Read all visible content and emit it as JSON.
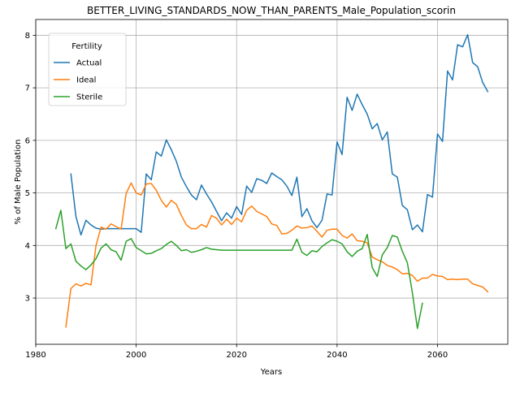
{
  "chart_data": {
    "type": "line",
    "title": "BETTER_LIVING_STANDARDS_NOW_THAN_PARENTS_Male_Population_scorin",
    "xlabel": "Years",
    "ylabel": "% of Male Population",
    "xlim": [
      1980,
      2074
    ],
    "ylim": [
      2.12,
      8.3
    ],
    "xticks": [
      1980,
      2000,
      2020,
      2040,
      2060
    ],
    "yticks": [
      3,
      4,
      5,
      6,
      7,
      8
    ],
    "grid": true,
    "legend": {
      "title": "Fertility",
      "position": "top-left"
    },
    "series": [
      {
        "name": "Actual",
        "color": "#1f77b4",
        "points": [
          [
            1987,
            5.36
          ],
          [
            1988,
            4.55
          ],
          [
            1989,
            4.2
          ],
          [
            1990,
            4.48
          ],
          [
            1991,
            4.39
          ],
          [
            1992,
            4.33
          ],
          [
            1993,
            4.31
          ],
          [
            1994,
            4.32
          ],
          [
            1995,
            4.32
          ],
          [
            1996,
            4.32
          ],
          [
            1997,
            4.32
          ],
          [
            1998,
            4.32
          ],
          [
            1999,
            4.32
          ],
          [
            2000,
            4.32
          ],
          [
            2001,
            4.25
          ],
          [
            2002,
            5.36
          ],
          [
            2003,
            5.25
          ],
          [
            2004,
            5.78
          ],
          [
            2005,
            5.7
          ],
          [
            2006,
            6.01
          ],
          [
            2007,
            5.82
          ],
          [
            2008,
            5.6
          ],
          [
            2009,
            5.3
          ],
          [
            2010,
            5.12
          ],
          [
            2011,
            4.96
          ],
          [
            2012,
            4.87
          ],
          [
            2013,
            5.15
          ],
          [
            2014,
            4.98
          ],
          [
            2015,
            4.83
          ],
          [
            2016,
            4.65
          ],
          [
            2017,
            4.47
          ],
          [
            2018,
            4.62
          ],
          [
            2019,
            4.52
          ],
          [
            2020,
            4.74
          ],
          [
            2021,
            4.59
          ],
          [
            2022,
            5.13
          ],
          [
            2023,
            5.01
          ],
          [
            2024,
            5.27
          ],
          [
            2025,
            5.24
          ],
          [
            2026,
            5.18
          ],
          [
            2027,
            5.38
          ],
          [
            2028,
            5.31
          ],
          [
            2029,
            5.25
          ],
          [
            2030,
            5.13
          ],
          [
            2031,
            4.95
          ],
          [
            2032,
            5.3
          ],
          [
            2033,
            4.55
          ],
          [
            2034,
            4.7
          ],
          [
            2035,
            4.47
          ],
          [
            2036,
            4.34
          ],
          [
            2037,
            4.48
          ],
          [
            2038,
            4.98
          ],
          [
            2039,
            4.96
          ],
          [
            2040,
            5.97
          ],
          [
            2041,
            5.73
          ],
          [
            2042,
            6.82
          ],
          [
            2043,
            6.57
          ],
          [
            2044,
            6.88
          ],
          [
            2045,
            6.68
          ],
          [
            2046,
            6.5
          ],
          [
            2047,
            6.22
          ],
          [
            2048,
            6.32
          ],
          [
            2049,
            6.01
          ],
          [
            2050,
            6.16
          ],
          [
            2051,
            5.36
          ],
          [
            2052,
            5.3
          ],
          [
            2053,
            4.76
          ],
          [
            2054,
            4.68
          ],
          [
            2055,
            4.3
          ],
          [
            2056,
            4.39
          ],
          [
            2057,
            4.26
          ],
          [
            2058,
            4.97
          ],
          [
            2059,
            4.92
          ],
          [
            2060,
            6.12
          ],
          [
            2061,
            5.98
          ],
          [
            2062,
            7.32
          ],
          [
            2063,
            7.15
          ],
          [
            2064,
            7.82
          ],
          [
            2065,
            7.78
          ],
          [
            2066,
            8.01
          ],
          [
            2067,
            7.48
          ],
          [
            2068,
            7.4
          ],
          [
            2069,
            7.1
          ],
          [
            2070,
            6.93
          ]
        ]
      },
      {
        "name": "Ideal",
        "color": "#ff7f0e",
        "points": [
          [
            1986,
            2.45
          ],
          [
            1987,
            3.18
          ],
          [
            1988,
            3.27
          ],
          [
            1989,
            3.23
          ],
          [
            1990,
            3.28
          ],
          [
            1991,
            3.25
          ],
          [
            1992,
            4.0
          ],
          [
            1993,
            4.35
          ],
          [
            1994,
            4.31
          ],
          [
            1995,
            4.41
          ],
          [
            1996,
            4.36
          ],
          [
            1997,
            4.31
          ],
          [
            1998,
            4.99
          ],
          [
            1999,
            5.19
          ],
          [
            2000,
            5.0
          ],
          [
            2001,
            4.96
          ],
          [
            2002,
            5.17
          ],
          [
            2003,
            5.18
          ],
          [
            2004,
            5.05
          ],
          [
            2005,
            4.86
          ],
          [
            2006,
            4.73
          ],
          [
            2007,
            4.86
          ],
          [
            2008,
            4.78
          ],
          [
            2009,
            4.57
          ],
          [
            2010,
            4.39
          ],
          [
            2011,
            4.32
          ],
          [
            2012,
            4.32
          ],
          [
            2013,
            4.4
          ],
          [
            2014,
            4.35
          ],
          [
            2015,
            4.57
          ],
          [
            2016,
            4.52
          ],
          [
            2017,
            4.39
          ],
          [
            2018,
            4.5
          ],
          [
            2019,
            4.4
          ],
          [
            2020,
            4.52
          ],
          [
            2021,
            4.45
          ],
          [
            2022,
            4.67
          ],
          [
            2023,
            4.75
          ],
          [
            2024,
            4.65
          ],
          [
            2025,
            4.6
          ],
          [
            2026,
            4.55
          ],
          [
            2027,
            4.41
          ],
          [
            2028,
            4.38
          ],
          [
            2029,
            4.22
          ],
          [
            2030,
            4.23
          ],
          [
            2031,
            4.29
          ],
          [
            2032,
            4.37
          ],
          [
            2033,
            4.33
          ],
          [
            2034,
            4.34
          ],
          [
            2035,
            4.37
          ],
          [
            2036,
            4.27
          ],
          [
            2037,
            4.16
          ],
          [
            2038,
            4.29
          ],
          [
            2039,
            4.31
          ],
          [
            2040,
            4.31
          ],
          [
            2041,
            4.19
          ],
          [
            2042,
            4.14
          ],
          [
            2043,
            4.22
          ],
          [
            2044,
            4.09
          ],
          [
            2045,
            4.08
          ],
          [
            2046,
            4.05
          ],
          [
            2047,
            3.78
          ],
          [
            2048,
            3.73
          ],
          [
            2049,
            3.69
          ],
          [
            2050,
            3.62
          ],
          [
            2051,
            3.59
          ],
          [
            2052,
            3.54
          ],
          [
            2053,
            3.46
          ],
          [
            2054,
            3.47
          ],
          [
            2055,
            3.43
          ],
          [
            2056,
            3.32
          ],
          [
            2057,
            3.38
          ],
          [
            2058,
            3.38
          ],
          [
            2059,
            3.45
          ],
          [
            2060,
            3.42
          ],
          [
            2061,
            3.41
          ],
          [
            2062,
            3.35
          ],
          [
            2063,
            3.36
          ],
          [
            2064,
            3.35
          ],
          [
            2065,
            3.36
          ],
          [
            2066,
            3.36
          ],
          [
            2067,
            3.27
          ],
          [
            2068,
            3.24
          ],
          [
            2069,
            3.21
          ],
          [
            2070,
            3.12
          ]
        ]
      },
      {
        "name": "Sterile",
        "color": "#2ca02c",
        "points": [
          [
            1984,
            4.32
          ],
          [
            1985,
            4.67
          ],
          [
            1986,
            3.94
          ],
          [
            1987,
            4.03
          ],
          [
            1988,
            3.7
          ],
          [
            1989,
            3.61
          ],
          [
            1990,
            3.54
          ],
          [
            1991,
            3.63
          ],
          [
            1992,
            3.75
          ],
          [
            1993,
            3.95
          ],
          [
            1994,
            4.03
          ],
          [
            1995,
            3.92
          ],
          [
            1996,
            3.88
          ],
          [
            1997,
            3.72
          ],
          [
            1998,
            4.08
          ],
          [
            1999,
            4.13
          ],
          [
            2000,
            3.96
          ],
          [
            2001,
            3.9
          ],
          [
            2002,
            3.84
          ],
          [
            2003,
            3.85
          ],
          [
            2004,
            3.9
          ],
          [
            2005,
            3.94
          ],
          [
            2006,
            4.02
          ],
          [
            2007,
            4.08
          ],
          [
            2008,
            4.0
          ],
          [
            2009,
            3.9
          ],
          [
            2010,
            3.92
          ],
          [
            2011,
            3.87
          ],
          [
            2012,
            3.89
          ],
          [
            2013,
            3.92
          ],
          [
            2014,
            3.96
          ],
          [
            2015,
            3.93
          ],
          [
            2016,
            3.92
          ],
          [
            2017,
            3.91
          ],
          [
            2018,
            3.91
          ],
          [
            2019,
            3.91
          ],
          [
            2020,
            3.91
          ],
          [
            2021,
            3.91
          ],
          [
            2022,
            3.91
          ],
          [
            2023,
            3.91
          ],
          [
            2024,
            3.91
          ],
          [
            2025,
            3.91
          ],
          [
            2026,
            3.91
          ],
          [
            2027,
            3.91
          ],
          [
            2028,
            3.91
          ],
          [
            2029,
            3.91
          ],
          [
            2030,
            3.91
          ],
          [
            2031,
            3.91
          ],
          [
            2032,
            4.12
          ],
          [
            2033,
            3.87
          ],
          [
            2034,
            3.81
          ],
          [
            2035,
            3.9
          ],
          [
            2036,
            3.88
          ],
          [
            2037,
            3.98
          ],
          [
            2038,
            4.05
          ],
          [
            2039,
            4.11
          ],
          [
            2040,
            4.08
          ],
          [
            2041,
            4.03
          ],
          [
            2042,
            3.88
          ],
          [
            2043,
            3.79
          ],
          [
            2044,
            3.89
          ],
          [
            2045,
            3.94
          ],
          [
            2046,
            4.21
          ],
          [
            2047,
            3.58
          ],
          [
            2048,
            3.41
          ],
          [
            2049,
            3.82
          ],
          [
            2050,
            3.96
          ],
          [
            2051,
            4.19
          ],
          [
            2052,
            4.16
          ],
          [
            2053,
            3.89
          ],
          [
            2054,
            3.67
          ],
          [
            2055,
            3.1
          ],
          [
            2056,
            2.42
          ],
          [
            2057,
            2.9
          ]
        ]
      }
    ]
  }
}
